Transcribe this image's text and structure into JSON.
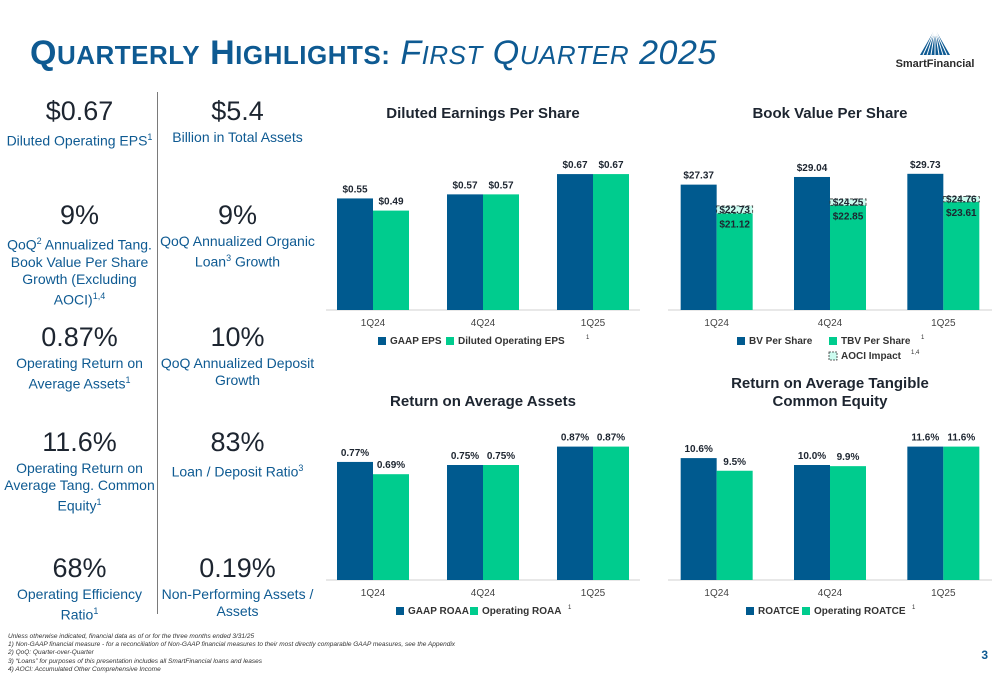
{
  "header": {
    "title_q": "Q",
    "title_uarterly": "UARTERLY",
    "title_h": "H",
    "title_ighlights": "IGHLIGHTS:",
    "title_f": "F",
    "title_irst": "IRST",
    "title_q2": "Q",
    "title_uarter": "UARTER",
    "title_year": "2025",
    "logo_text": "SmartFinancial"
  },
  "stats": [
    {
      "value": "$0.67",
      "label": "Diluted Operating EPS",
      "sup": "1"
    },
    {
      "value": "$5.4",
      "label": "Billion in Total Assets",
      "sup": ""
    },
    {
      "value": "9%",
      "label_a": "QoQ",
      "sup_a": "2",
      "label_b": " Annualized Tang. Book Value Per Share Growth (Excluding AOCI)",
      "sup": "1,4"
    },
    {
      "value": "9%",
      "label_a": "QoQ Annualized Organic Loan",
      "sup_a": "3",
      "label_b": " Growth",
      "sup": ""
    },
    {
      "value": "0.87%",
      "label": "Operating Return on Average Assets",
      "sup": "1"
    },
    {
      "value": "10%",
      "label": "QoQ Annualized Deposit Growth",
      "sup": ""
    },
    {
      "value": "11.6%",
      "label": "Operating Return on Average Tang. Common Equity",
      "sup": "1"
    },
    {
      "value": "83%",
      "label": "Loan / Deposit Ratio",
      "sup": "3"
    },
    {
      "value": "68%",
      "label": "Operating Efficiency Ratio",
      "sup": "1"
    },
    {
      "value": "0.19%",
      "label": "Non-Performing Assets / Assets",
      "sup": ""
    }
  ],
  "colors": {
    "dark": "#005a8f",
    "light": "#00cc8e",
    "aoci": "#ccfbef",
    "title": "#0e5a92"
  },
  "chart_data": [
    {
      "type": "bar",
      "title": "Diluted Earnings Per Share",
      "categories": [
        "1Q24",
        "4Q24",
        "1Q25"
      ],
      "series": [
        {
          "name": "GAAP EPS",
          "values": [
            0.55,
            0.57,
            0.67
          ],
          "labels": [
            "$0.55",
            "$0.57",
            "$0.67"
          ]
        },
        {
          "name": "Diluted Operating EPS",
          "values": [
            0.49,
            0.57,
            0.67
          ],
          "labels": [
            "$0.49",
            "$0.57",
            "$0.67"
          ]
        }
      ],
      "legend_sup": "1",
      "ylim": [
        0,
        0.7
      ]
    },
    {
      "type": "bar",
      "title": "Book Value Per Share",
      "categories": [
        "1Q24",
        "4Q24",
        "1Q25"
      ],
      "series": [
        {
          "name": "BV Per Share",
          "values": [
            27.37,
            29.04,
            29.73
          ],
          "labels": [
            "$27.37",
            "$29.04",
            "$29.73"
          ]
        },
        {
          "name": "TBV Per Share",
          "values": [
            21.12,
            22.85,
            23.61
          ],
          "labels": [
            "$21.12",
            "$22.85",
            "$23.61"
          ]
        }
      ],
      "aoci": {
        "name": "AOCI Impact",
        "totals": [
          22.73,
          24.25,
          24.76
        ],
        "labels": [
          "$22.73",
          "$24.25",
          "$24.76"
        ]
      },
      "legend_sup": "1",
      "aoci_sup": "1,4",
      "ylim": [
        0,
        31
      ]
    },
    {
      "type": "bar",
      "title": "Return on Average Assets",
      "categories": [
        "1Q24",
        "4Q24",
        "1Q25"
      ],
      "series": [
        {
          "name": "GAAP ROAA",
          "values": [
            0.77,
            0.75,
            0.87
          ],
          "labels": [
            "0.77%",
            "0.75%",
            "0.87%"
          ]
        },
        {
          "name": "Operating ROAA",
          "values": [
            0.69,
            0.75,
            0.87
          ],
          "labels": [
            "0.69%",
            "0.75%",
            "0.87%"
          ]
        }
      ],
      "legend_sup": "1",
      "ylim": [
        0,
        0.9
      ]
    },
    {
      "type": "bar",
      "title": "Return on Average Tangible Common Equity",
      "title_lines": [
        "Return on Average Tangible",
        "Common Equity"
      ],
      "categories": [
        "1Q24",
        "4Q24",
        "1Q25"
      ],
      "series": [
        {
          "name": "ROATCE",
          "values": [
            10.6,
            10.0,
            11.6
          ],
          "labels": [
            "10.6%",
            "10.0%",
            "11.6%"
          ]
        },
        {
          "name": "Operating ROATCE",
          "values": [
            9.5,
            9.9,
            11.6
          ],
          "labels": [
            "9.5%",
            "9.9%",
            "11.6%"
          ]
        }
      ],
      "legend_sup": "1",
      "ylim": [
        0,
        12.0
      ]
    }
  ],
  "footnotes": {
    "intro": "Unless otherwise indicated, financial data as of or for the three months ended 3/31/25",
    "items": [
      "1)    Non-GAAP financial measure - for a reconciliation of Non-GAAP financial measures to their most directly comparable GAAP measures, see the Appendix",
      "2)    QoQ: Quarter-over-Quarter",
      "3)    “Loans” for purposes of this presentation includes all SmartFinancial loans and leases",
      "4)    AOCI: Accumulated Other Comprehensive Income"
    ]
  },
  "page_number": "3"
}
